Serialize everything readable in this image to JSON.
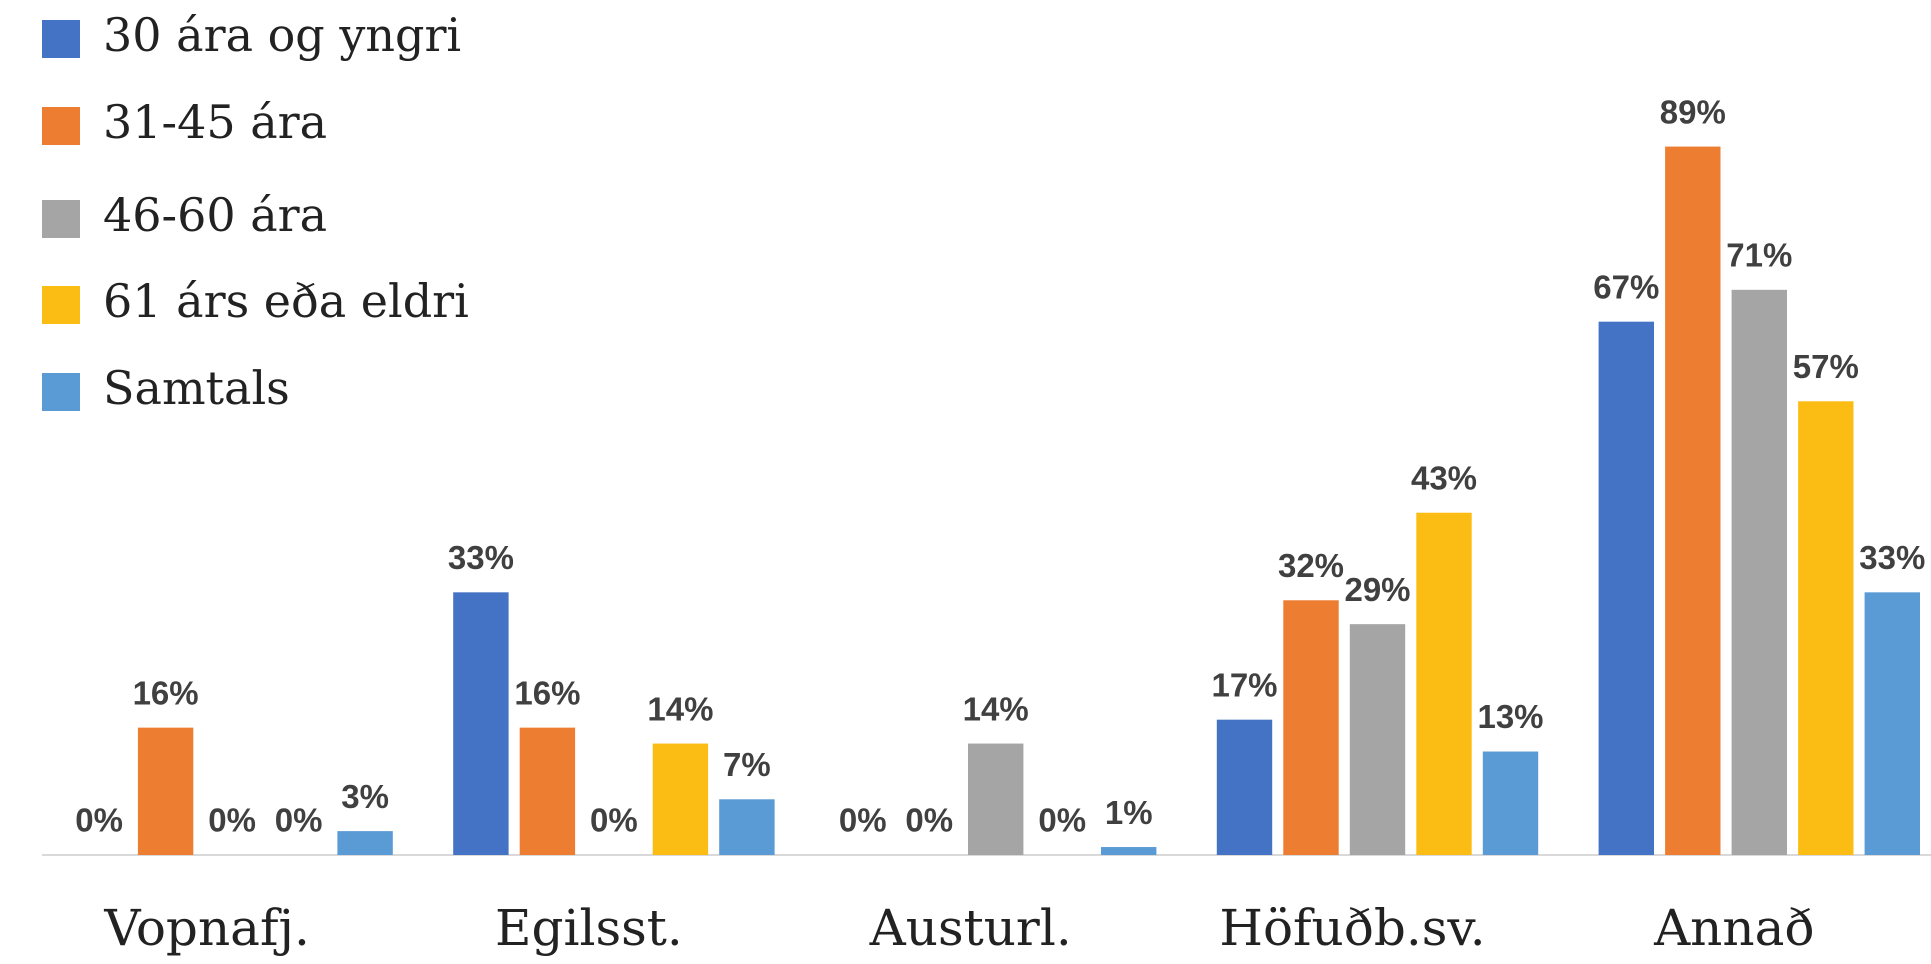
{
  "chart_data": {
    "type": "bar",
    "categories": [
      "Vopnafj.",
      "Egilsst.",
      "Austurl.",
      "Höfuðb.sv.",
      "Annað"
    ],
    "legend": "top-left",
    "series": [
      {
        "name": "30 ára og yngri",
        "color": "#4472c4",
        "values": [
          0,
          33,
          0,
          17,
          67
        ],
        "value_labels": [
          "0%",
          "33%",
          "0%",
          "17%",
          "67%"
        ]
      },
      {
        "name": "31-45 ára",
        "color": "#ed7d31",
        "values": [
          16,
          16,
          0,
          32,
          89
        ],
        "value_labels": [
          "16%",
          "16%",
          "0%",
          "32%",
          "89%"
        ]
      },
      {
        "name": "46-60 ára",
        "color": "#a5a5a5",
        "values": [
          0,
          0,
          14,
          29,
          71
        ],
        "value_labels": [
          "0%",
          "0%",
          "14%",
          "29%",
          "71%"
        ]
      },
      {
        "name": "61 árs eða eldri",
        "color": "#fbbc14",
        "values": [
          0,
          14,
          0,
          43,
          57
        ],
        "value_labels": [
          "0%",
          "14%",
          "0%",
          "43%",
          "57%"
        ]
      },
      {
        "name": "Samtals",
        "color": "#5b9bd5",
        "values": [
          3,
          7,
          1,
          13,
          33
        ],
        "value_labels": [
          "3%",
          "7%",
          "1%",
          "13%",
          "33%"
        ]
      }
    ]
  }
}
